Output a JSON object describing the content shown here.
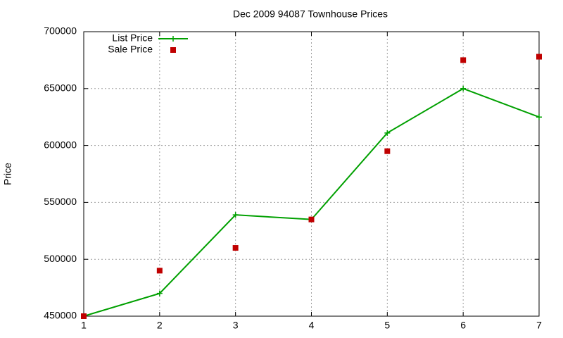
{
  "chart_data": {
    "type": "line",
    "title": "Dec 2009 94087 Townhouse Prices",
    "ylabel": "Price",
    "x": [
      1,
      2,
      3,
      4,
      5,
      6,
      7
    ],
    "series": [
      {
        "name": "List Price",
        "color": "#00a000",
        "style": "linespoints",
        "marker": "plus",
        "values": [
          450000,
          470000,
          539000,
          535000,
          611000,
          650000,
          625000
        ]
      },
      {
        "name": "Sale Price",
        "color": "#c00000",
        "style": "points",
        "marker": "square",
        "values": [
          450000,
          490000,
          510000,
          535000,
          595000,
          675000,
          678000
        ]
      }
    ],
    "xlim": [
      1,
      7
    ],
    "xticks": [
      1,
      2,
      3,
      4,
      5,
      6,
      7
    ],
    "ylim": [
      450000,
      700000
    ],
    "yticks": [
      450000,
      500000,
      550000,
      600000,
      650000,
      700000
    ],
    "grid": true,
    "legend": "top-left"
  }
}
